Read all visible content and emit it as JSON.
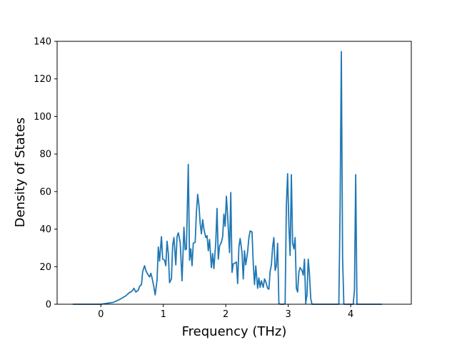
{
  "chart_data": {
    "type": "line",
    "title": "",
    "xlabel": "Frequency (THz)",
    "ylabel": "Density of States",
    "xlim": [
      -0.7,
      4.97
    ],
    "ylim": [
      0,
      140
    ],
    "x_ticks": [
      0,
      1,
      2,
      3,
      4
    ],
    "y_ticks": [
      0,
      20,
      40,
      60,
      80,
      100,
      120,
      140
    ],
    "grid": false,
    "series": [
      {
        "color": "#1f77b4",
        "points": [
          [
            -0.45,
            0
          ],
          [
            0.0,
            0
          ],
          [
            0.1,
            0.5
          ],
          [
            0.2,
            1
          ],
          [
            0.3,
            2.5
          ],
          [
            0.4,
            4.5
          ],
          [
            0.45,
            6
          ],
          [
            0.5,
            7
          ],
          [
            0.53,
            8.5
          ],
          [
            0.56,
            6.5
          ],
          [
            0.6,
            7.5
          ],
          [
            0.62,
            9.5
          ],
          [
            0.65,
            10.5
          ],
          [
            0.67,
            17.5
          ],
          [
            0.7,
            20.5
          ],
          [
            0.72,
            18
          ],
          [
            0.75,
            16
          ],
          [
            0.78,
            14.5
          ],
          [
            0.8,
            16.5
          ],
          [
            0.82,
            14
          ],
          [
            0.85,
            9
          ],
          [
            0.87,
            5
          ],
          [
            0.9,
            13
          ],
          [
            0.92,
            30.5
          ],
          [
            0.94,
            23
          ],
          [
            0.97,
            36
          ],
          [
            0.99,
            24
          ],
          [
            1.02,
            23.5
          ],
          [
            1.04,
            20.5
          ],
          [
            1.06,
            33.5
          ],
          [
            1.08,
            27
          ],
          [
            1.1,
            11.5
          ],
          [
            1.13,
            13.5
          ],
          [
            1.15,
            31.5
          ],
          [
            1.17,
            35.5
          ],
          [
            1.2,
            21
          ],
          [
            1.22,
            36
          ],
          [
            1.24,
            38
          ],
          [
            1.27,
            33
          ],
          [
            1.3,
            12.5
          ],
          [
            1.33,
            41
          ],
          [
            1.35,
            29
          ],
          [
            1.37,
            29.5
          ],
          [
            1.4,
            74.5
          ],
          [
            1.42,
            23.5
          ],
          [
            1.44,
            29.5
          ],
          [
            1.46,
            20.5
          ],
          [
            1.48,
            32.5
          ],
          [
            1.51,
            33
          ],
          [
            1.53,
            49
          ],
          [
            1.55,
            58.5
          ],
          [
            1.57,
            53
          ],
          [
            1.59,
            43
          ],
          [
            1.61,
            37.5
          ],
          [
            1.63,
            45
          ],
          [
            1.65,
            40
          ],
          [
            1.68,
            35.5
          ],
          [
            1.7,
            36.5
          ],
          [
            1.72,
            28.5
          ],
          [
            1.74,
            34.5
          ],
          [
            1.77,
            19.5
          ],
          [
            1.79,
            27
          ],
          [
            1.81,
            19
          ],
          [
            1.84,
            33
          ],
          [
            1.86,
            51
          ],
          [
            1.88,
            24
          ],
          [
            1.9,
            31
          ],
          [
            1.93,
            33
          ],
          [
            1.95,
            36
          ],
          [
            1.97,
            48
          ],
          [
            1.99,
            41.5
          ],
          [
            2.01,
            57.5
          ],
          [
            2.03,
            47
          ],
          [
            2.06,
            27.5
          ],
          [
            2.08,
            59.5
          ],
          [
            2.1,
            17
          ],
          [
            2.12,
            21.5
          ],
          [
            2.15,
            22
          ],
          [
            2.17,
            22.5
          ],
          [
            2.19,
            11
          ],
          [
            2.21,
            30.5
          ],
          [
            2.23,
            35
          ],
          [
            2.26,
            27.5
          ],
          [
            2.28,
            13.5
          ],
          [
            2.3,
            28.5
          ],
          [
            2.32,
            21
          ],
          [
            2.35,
            28
          ],
          [
            2.37,
            35.5
          ],
          [
            2.39,
            39
          ],
          [
            2.42,
            38.5
          ],
          [
            2.44,
            21.5
          ],
          [
            2.46,
            10.5
          ],
          [
            2.48,
            20.5
          ],
          [
            2.51,
            8.5
          ],
          [
            2.53,
            14
          ],
          [
            2.55,
            9
          ],
          [
            2.57,
            12.5
          ],
          [
            2.6,
            9
          ],
          [
            2.62,
            13.5
          ],
          [
            2.64,
            12
          ],
          [
            2.67,
            8.5
          ],
          [
            2.69,
            8
          ],
          [
            2.71,
            17.5
          ],
          [
            2.73,
            21
          ],
          [
            2.75,
            30.5
          ],
          [
            2.77,
            35.5
          ],
          [
            2.79,
            18
          ],
          [
            2.81,
            20.5
          ],
          [
            2.83,
            32.5
          ],
          [
            2.85,
            0.5
          ],
          [
            2.87,
            0
          ],
          [
            2.93,
            0
          ],
          [
            2.95,
            0.5
          ],
          [
            2.97,
            52.5
          ],
          [
            2.99,
            69.5
          ],
          [
            3.01,
            42
          ],
          [
            3.03,
            26
          ],
          [
            3.05,
            69
          ],
          [
            3.07,
            32.5
          ],
          [
            3.09,
            29.5
          ],
          [
            3.11,
            35.5
          ],
          [
            3.13,
            8.5
          ],
          [
            3.15,
            6.5
          ],
          [
            3.17,
            17
          ],
          [
            3.19,
            19.5
          ],
          [
            3.22,
            18
          ],
          [
            3.24,
            15.5
          ],
          [
            3.26,
            24
          ],
          [
            3.28,
            0.5
          ],
          [
            3.3,
            5
          ],
          [
            3.32,
            24
          ],
          [
            3.34,
            16
          ],
          [
            3.36,
            3
          ],
          [
            3.38,
            0
          ],
          [
            3.81,
            0
          ],
          [
            3.83,
            51
          ],
          [
            3.85,
            134.5
          ],
          [
            3.87,
            25
          ],
          [
            3.89,
            0
          ],
          [
            4.04,
            0
          ],
          [
            4.06,
            7.5
          ],
          [
            4.08,
            69
          ],
          [
            4.1,
            0
          ],
          [
            4.5,
            0
          ]
        ]
      }
    ]
  }
}
